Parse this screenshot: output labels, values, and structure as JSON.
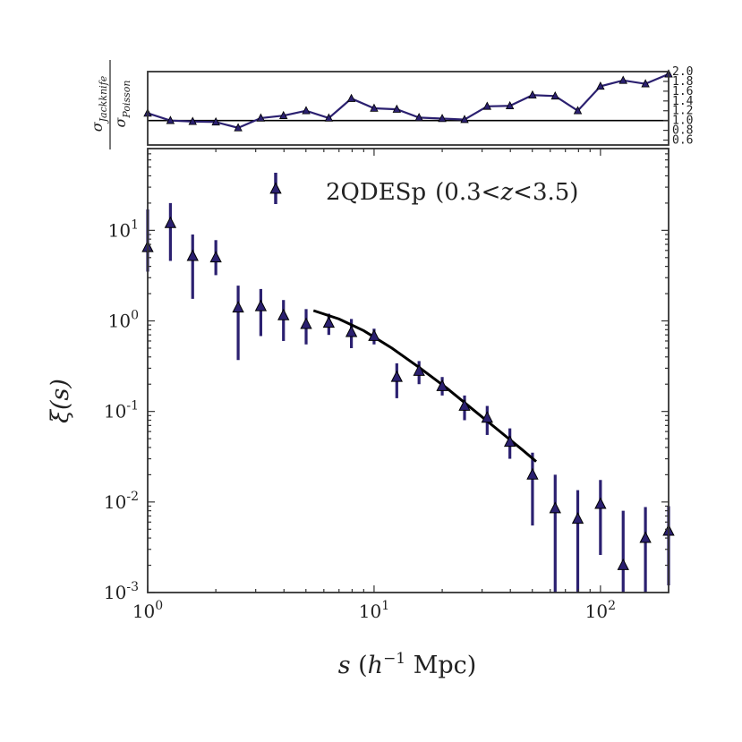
{
  "chart_data": [
    {
      "type": "line",
      "title": "",
      "ylabel": "σ_Jackknife / σ_Poisson",
      "ylabel_num": "σ",
      "ylabel_num_sub": "Jackknife",
      "ylabel_den": "σ",
      "ylabel_den_sub": "Poisson",
      "x_log": true,
      "xlim": [
        1,
        200
      ],
      "ylim": [
        0.5,
        2.0
      ],
      "yticks": [
        0.6,
        0.8,
        1.0,
        1.2,
        1.4,
        1.6,
        1.8,
        2.0
      ],
      "ytick_labels": [
        "0.6",
        "0.8",
        "1.0",
        "1.2",
        "1.4",
        "1.6",
        "1.8",
        "2.0"
      ],
      "reference_line": 1.0,
      "series": [
        {
          "name": "ratio",
          "color": "#2b2070",
          "x": [
            1.0,
            1.26,
            1.58,
            2.0,
            2.51,
            3.16,
            3.98,
            5.01,
            6.31,
            7.94,
            10.0,
            12.6,
            15.8,
            20.0,
            25.1,
            31.6,
            39.8,
            50.1,
            63.1,
            79.4,
            100.0,
            126.0,
            158.0,
            200.0
          ],
          "y": [
            1.15,
            1.0,
            0.98,
            0.97,
            0.85,
            1.05,
            1.1,
            1.2,
            1.05,
            1.45,
            1.25,
            1.23,
            1.06,
            1.04,
            1.02,
            1.29,
            1.3,
            1.52,
            1.5,
            1.2,
            1.7,
            1.82,
            1.75,
            1.95
          ]
        }
      ]
    },
    {
      "type": "scatter",
      "title": "",
      "xlabel": "s (h⁻¹ Mpc)",
      "xlabel_s": "s",
      "xlabel_paren_open": " (",
      "xlabel_h": "h",
      "xlabel_exp": "−1",
      "xlabel_rest": " Mpc)",
      "ylabel": "ξ(s)",
      "x_log": true,
      "y_log": true,
      "xlim": [
        1,
        200
      ],
      "ylim": [
        0.001,
        80
      ],
      "xticks": [
        1,
        10,
        100
      ],
      "xtick_labels": [
        {
          "base": "10",
          "exp": "0"
        },
        {
          "base": "10",
          "exp": "1"
        },
        {
          "base": "10",
          "exp": "2"
        }
      ],
      "yticks": [
        0.001,
        0.01,
        0.1,
        1,
        10
      ],
      "ytick_labels": [
        {
          "base": "10",
          "exp": "-3"
        },
        {
          "base": "10",
          "exp": "-2"
        },
        {
          "base": "10",
          "exp": "-1"
        },
        {
          "base": "10",
          "exp": "0"
        },
        {
          "base": "10",
          "exp": "1"
        }
      ],
      "legend": {
        "position": "top-right",
        "label": "2QDESp",
        "range_open": "(0.3",
        "range_lt1": "<",
        "range_z": "z",
        "range_lt2": "<",
        "range_close": "3.5)"
      },
      "series": [
        {
          "name": "2QDESp (0.3 < z < 3.5)",
          "color": "#2b2070",
          "marker": "triangle",
          "x": [
            1.0,
            1.26,
            1.58,
            2.0,
            2.51,
            3.16,
            3.98,
            5.01,
            6.31,
            7.94,
            10.0,
            12.6,
            15.8,
            20.0,
            25.1,
            31.6,
            39.8,
            50.1,
            63.1,
            79.4,
            100.0,
            126.0,
            158.0,
            200.0
          ],
          "y": [
            6.5,
            12.0,
            5.2,
            5.0,
            1.4,
            1.45,
            1.15,
            0.92,
            0.95,
            0.75,
            0.68,
            0.24,
            0.28,
            0.19,
            0.115,
            0.085,
            0.046,
            0.02,
            0.0085,
            0.0065,
            0.0095,
            0.002,
            0.004,
            0.0048
          ],
          "y_err_low": [
            3.5,
            4.6,
            1.75,
            3.2,
            0.37,
            0.68,
            0.6,
            0.55,
            0.7,
            0.5,
            0.55,
            0.14,
            0.2,
            0.15,
            0.08,
            0.055,
            0.03,
            0.0055,
            0.0009,
            0.001,
            0.0026,
            0.0009,
            0.0009,
            0.0012
          ],
          "y_err_high": [
            17.0,
            20.0,
            9.0,
            7.8,
            2.45,
            2.25,
            1.7,
            1.35,
            1.2,
            1.05,
            0.82,
            0.34,
            0.36,
            0.24,
            0.15,
            0.115,
            0.065,
            0.035,
            0.02,
            0.0135,
            0.0175,
            0.008,
            0.0088,
            0.009
          ]
        },
        {
          "name": "model fit",
          "type": "line",
          "color": "#000000",
          "x": [
            5.4,
            7.0,
            9.0,
            12.0,
            16.0,
            21.0,
            28.0,
            36.0,
            45.0,
            52.0
          ],
          "y": [
            1.3,
            1.05,
            0.78,
            0.5,
            0.3,
            0.18,
            0.1,
            0.06,
            0.038,
            0.028
          ]
        }
      ]
    }
  ]
}
